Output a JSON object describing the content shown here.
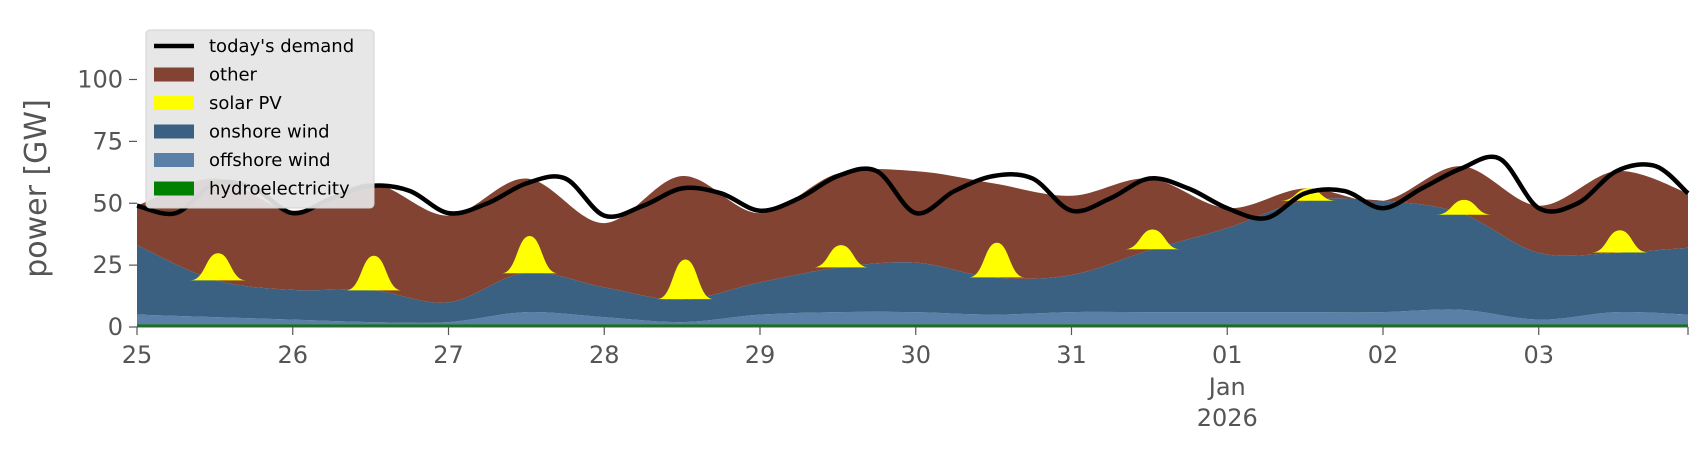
{
  "chart_data": {
    "type": "area",
    "ylabel": "power [GW]",
    "ylim": [
      0,
      120
    ],
    "yticks": [
      0,
      25,
      50,
      75,
      100
    ],
    "x_range": [
      "2025-12-25",
      "2026-01-03T23:00"
    ],
    "x_ticks": [
      {
        "date": "2025-12-25",
        "label": "25"
      },
      {
        "date": "2025-12-26",
        "label": "26"
      },
      {
        "date": "2025-12-27",
        "label": "27"
      },
      {
        "date": "2025-12-28",
        "label": "28"
      },
      {
        "date": "2025-12-29",
        "label": "29"
      },
      {
        "date": "2025-12-30",
        "label": "30"
      },
      {
        "date": "2025-12-31",
        "label": "31"
      },
      {
        "date": "2026-01-01",
        "label": "01",
        "sublabels": [
          "Jan",
          "2026"
        ]
      },
      {
        "date": "2026-01-02",
        "label": "02"
      },
      {
        "date": "2026-01-03",
        "label": "03"
      }
    ],
    "grid": false,
    "legend_position": "top-left",
    "stacked": true,
    "x": [
      "2025-12-25T00:00",
      "2025-12-25T12:00",
      "2025-12-26T00:00",
      "2025-12-26T12:00",
      "2025-12-27T00:00",
      "2025-12-27T12:00",
      "2025-12-28T00:00",
      "2025-12-28T12:00",
      "2025-12-29T00:00",
      "2025-12-29T12:00",
      "2025-12-30T00:00",
      "2025-12-30T12:00",
      "2025-12-31T00:00",
      "2025-12-31T12:00",
      "2026-01-01T00:00",
      "2026-01-01T12:00",
      "2026-01-02T00:00",
      "2026-01-02T12:00",
      "2026-01-03T00:00",
      "2026-01-03T12:00",
      "2026-01-03T23:00"
    ],
    "series": [
      {
        "name": "hydroelectricity",
        "color": "#008000",
        "values": [
          1,
          1,
          1,
          1,
          1,
          1,
          1,
          1,
          1,
          1,
          1,
          1,
          1,
          1,
          1,
          1,
          1,
          1,
          1,
          1,
          1
        ]
      },
      {
        "name": "offshore wind",
        "color": "#5b80a7",
        "values": [
          4,
          3,
          2,
          1,
          1,
          5,
          3,
          1,
          4,
          5,
          5,
          4,
          5,
          5,
          5,
          5,
          5,
          6,
          2,
          5,
          4
        ]
      },
      {
        "name": "onshore wind",
        "color": "#3a6182",
        "values": [
          28,
          15,
          12,
          13,
          8,
          16,
          12,
          9,
          13,
          18,
          20,
          15,
          15,
          25,
          34,
          45,
          45,
          39,
          27,
          24,
          27
        ]
      },
      {
        "name": "solar PV",
        "color": "#ffff00",
        "values": [
          0,
          0,
          0,
          0,
          0,
          0,
          0,
          0,
          0,
          0,
          0,
          0,
          0,
          0,
          0,
          0,
          0,
          0,
          0,
          0,
          0
        ]
      },
      {
        "name": "other",
        "color": "#824332",
        "values": [
          16,
          41,
          32,
          43,
          35,
          38,
          26,
          50,
          28,
          38,
          37,
          38,
          32,
          29,
          8,
          5,
          0,
          19,
          19,
          33,
          22
        ]
      }
    ],
    "solar_peaks": [
      {
        "x": "2025-12-25T12:30",
        "value": 11
      },
      {
        "x": "2025-12-26T12:30",
        "value": 14
      },
      {
        "x": "2025-12-27T12:30",
        "value": 15
      },
      {
        "x": "2025-12-28T12:30",
        "value": 16
      },
      {
        "x": "2025-12-29T12:30",
        "value": 9
      },
      {
        "x": "2025-12-30T12:30",
        "value": 14
      },
      {
        "x": "2025-12-31T12:30",
        "value": 8
      },
      {
        "x": "2026-01-01T12:30",
        "value": 5
      },
      {
        "x": "2026-01-02T12:30",
        "value": 6
      },
      {
        "x": "2026-01-03T12:30",
        "value": 9
      }
    ],
    "demand": {
      "name": "today's demand",
      "color": "#000000",
      "x": [
        "2025-12-25T00:00",
        "2025-12-25T06:00",
        "2025-12-25T12:00",
        "2025-12-25T18:00",
        "2025-12-26T00:00",
        "2025-12-26T06:00",
        "2025-12-26T12:00",
        "2025-12-26T18:00",
        "2025-12-27T00:00",
        "2025-12-27T06:00",
        "2025-12-27T12:00",
        "2025-12-27T18:00",
        "2025-12-28T00:00",
        "2025-12-28T06:00",
        "2025-12-28T12:00",
        "2025-12-28T18:00",
        "2025-12-29T00:00",
        "2025-12-29T06:00",
        "2025-12-29T12:00",
        "2025-12-29T18:00",
        "2025-12-30T00:00",
        "2025-12-30T06:00",
        "2025-12-30T12:00",
        "2025-12-30T18:00",
        "2025-12-31T00:00",
        "2025-12-31T06:00",
        "2025-12-31T12:00",
        "2025-12-31T18:00",
        "2026-01-01T00:00",
        "2026-01-01T06:00",
        "2026-01-01T12:00",
        "2026-01-01T18:00",
        "2026-01-02T00:00",
        "2026-01-02T06:00",
        "2026-01-02T12:00",
        "2026-01-02T18:00",
        "2026-01-03T00:00",
        "2026-01-03T06:00",
        "2026-01-03T12:00",
        "2026-01-03T18:00",
        "2026-01-03T23:00"
      ],
      "values": [
        49,
        46,
        58,
        56,
        46,
        52,
        57,
        55,
        46,
        50,
        58,
        60,
        45,
        49,
        56,
        54,
        47,
        52,
        61,
        63,
        46,
        55,
        61,
        60,
        47,
        52,
        60,
        56,
        48,
        44,
        54,
        55,
        48,
        56,
        64,
        68,
        48,
        50,
        63,
        65,
        54
      ]
    },
    "legend": [
      {
        "label": "today's demand",
        "kind": "line",
        "color": "#000000"
      },
      {
        "label": "other",
        "kind": "patch",
        "color": "#824332"
      },
      {
        "label": "solar PV",
        "kind": "patch",
        "color": "#ffff00"
      },
      {
        "label": "onshore wind",
        "kind": "patch",
        "color": "#3a6182"
      },
      {
        "label": "offshore wind",
        "kind": "patch",
        "color": "#5b80a7"
      },
      {
        "label": "hydroelectricity",
        "kind": "patch",
        "color": "#008000"
      }
    ]
  }
}
